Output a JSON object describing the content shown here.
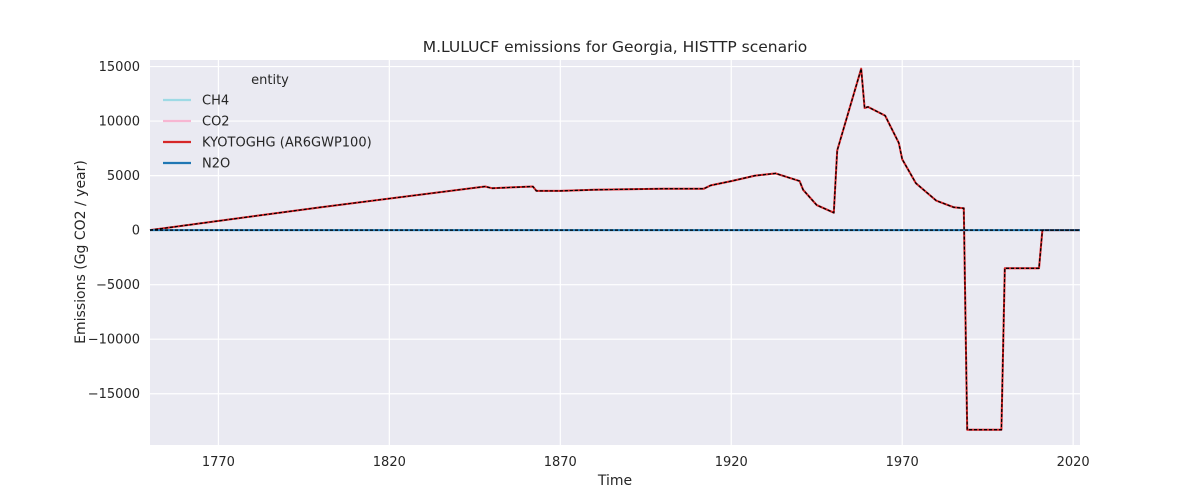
{
  "chart_data": {
    "type": "line",
    "title": "M.LULUCF emissions for Georgia, HISTTP scenario",
    "xlabel": "Time",
    "ylabel": "Emissions (Gg CO2 / year)",
    "xlim": [
      1750,
      2022
    ],
    "ylim": [
      -19700,
      15600
    ],
    "xticks": [
      1770,
      1820,
      1870,
      1920,
      1970,
      2020
    ],
    "yticks": [
      -15000,
      -10000,
      -5000,
      0,
      5000,
      10000,
      15000
    ],
    "ytick_labels": [
      "−15000",
      "−10000",
      "−5000",
      "0",
      "5000",
      "10000",
      "15000"
    ],
    "grid": true,
    "legend": {
      "title": "entity",
      "placement": "top-left",
      "entries": [
        "CH4",
        "CO2",
        "KYOTOGHG (AR6GWP100)",
        "N2O"
      ]
    },
    "colors": {
      "CH4": "#9edae5",
      "CO2": "#f7b6d2",
      "KYOTOGHG (AR6GWP100)": "#d62728",
      "N2O": "#1f77b4",
      "overlay": "#000000",
      "plot_bg": "#eaeaf2"
    },
    "series": [
      {
        "name": "CH4",
        "x": [
          1750,
          2022
        ],
        "y": [
          0,
          0
        ]
      },
      {
        "name": "CO2",
        "x": [
          1750,
          1800,
          1848,
          1850,
          1862,
          1863,
          1870,
          1880,
          1900,
          1912,
          1914,
          1920,
          1927,
          1933,
          1940,
          1941,
          1945,
          1950,
          1951,
          1958,
          1959,
          1960,
          1965,
          1969,
          1970,
          1974,
          1980,
          1985,
          1988,
          1989,
          1999,
          2000,
          2010,
          2011,
          2022
        ],
        "y": [
          0,
          2100,
          4000,
          3850,
          4000,
          3600,
          3600,
          3700,
          3800,
          3800,
          4100,
          4500,
          5000,
          5200,
          4500,
          3700,
          2300,
          1600,
          7300,
          14800,
          11200,
          11300,
          10500,
          8000,
          6500,
          4300,
          2700,
          2100,
          2000,
          -18300,
          -18300,
          -3500,
          -3500,
          0,
          0
        ]
      },
      {
        "name": "KYOTOGHG (AR6GWP100)",
        "x": [
          1750,
          1800,
          1848,
          1850,
          1862,
          1863,
          1870,
          1880,
          1900,
          1912,
          1914,
          1920,
          1927,
          1933,
          1940,
          1941,
          1945,
          1950,
          1951,
          1958,
          1959,
          1960,
          1965,
          1969,
          1970,
          1974,
          1980,
          1985,
          1988,
          1989,
          1999,
          2000,
          2010,
          2011,
          2022
        ],
        "y": [
          0,
          2100,
          4000,
          3850,
          4000,
          3600,
          3600,
          3700,
          3800,
          3800,
          4100,
          4500,
          5000,
          5200,
          4500,
          3700,
          2300,
          1600,
          7300,
          14800,
          11200,
          11300,
          10500,
          8000,
          6500,
          4300,
          2700,
          2100,
          2000,
          -18300,
          -18300,
          -3500,
          -3500,
          0,
          0
        ]
      },
      {
        "name": "N2O",
        "x": [
          1750,
          2022
        ],
        "y": [
          0,
          0
        ]
      }
    ]
  }
}
